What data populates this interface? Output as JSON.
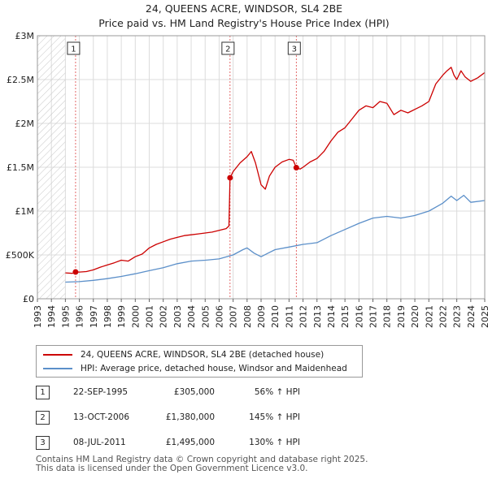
{
  "title": "24, QUEENS ACRE, WINDSOR, SL4 2BE",
  "subtitle": "Price paid vs. HM Land Registry's House Price Index (HPI)",
  "colors": {
    "property": "#cc0000",
    "hpi": "#5b8fc9",
    "grid": "#dcdcdc",
    "marker": "#dd4444"
  },
  "chart_data": {
    "type": "line",
    "title": "24, QUEENS ACRE, WINDSOR, SL4 2BE",
    "subtitle": "Price paid vs. HM Land Registry's House Price Index (HPI)",
    "xlabel": "",
    "ylabel": "",
    "xlim": [
      1993,
      2025
    ],
    "ylim": [
      0,
      3000000
    ],
    "x_ticks": [
      "1993",
      "1994",
      "1995",
      "1996",
      "1997",
      "1998",
      "1999",
      "2000",
      "2001",
      "2002",
      "2003",
      "2004",
      "2005",
      "2006",
      "2007",
      "2008",
      "2009",
      "2010",
      "2011",
      "2012",
      "2013",
      "2014",
      "2015",
      "2016",
      "2017",
      "2018",
      "2019",
      "2020",
      "2021",
      "2022",
      "2023",
      "2024",
      "2025"
    ],
    "y_ticks": [
      {
        "value": 0,
        "label": "£0"
      },
      {
        "value": 500000,
        "label": "£500K"
      },
      {
        "value": 1000000,
        "label": "£1M"
      },
      {
        "value": 1500000,
        "label": "£1.5M"
      },
      {
        "value": 2000000,
        "label": "£2M"
      },
      {
        "value": 2500000,
        "label": "£2.5M"
      },
      {
        "value": 3000000,
        "label": "£3M"
      }
    ],
    "grid": true,
    "hatched_range": [
      1993,
      1995
    ],
    "series": [
      {
        "name": "24, QUEENS ACRE, WINDSOR, SL4 2BE (detached house)",
        "color": "#cc0000",
        "x": [
          1995.0,
          1995.5,
          1995.73,
          1996.0,
          1996.5,
          1997.0,
          1997.5,
          1998.0,
          1998.5,
          1999.0,
          1999.5,
          2000.0,
          2000.5,
          2001.0,
          2001.5,
          2002.0,
          2002.5,
          2003.0,
          2003.5,
          2004.0,
          2004.5,
          2005.0,
          2005.5,
          2006.0,
          2006.5,
          2006.7,
          2006.78,
          2007.0,
          2007.5,
          2008.0,
          2008.3,
          2008.6,
          2009.0,
          2009.3,
          2009.6,
          2010.0,
          2010.5,
          2011.0,
          2011.3,
          2011.52,
          2011.8,
          2012.0,
          2012.5,
          2013.0,
          2013.5,
          2014.0,
          2014.5,
          2015.0,
          2015.5,
          2016.0,
          2016.5,
          2017.0,
          2017.5,
          2018.0,
          2018.5,
          2019.0,
          2019.5,
          2020.0,
          2020.5,
          2021.0,
          2021.5,
          2022.0,
          2022.3,
          2022.6,
          2022.8,
          2023.0,
          2023.3,
          2023.6,
          2024.0,
          2024.5,
          2025.0
        ],
        "y": [
          295000,
          290000,
          305000,
          305000,
          310000,
          330000,
          360000,
          385000,
          410000,
          440000,
          430000,
          480000,
          510000,
          580000,
          620000,
          650000,
          680000,
          700000,
          720000,
          730000,
          740000,
          750000,
          760000,
          780000,
          800000,
          830000,
          1380000,
          1450000,
          1550000,
          1620000,
          1680000,
          1550000,
          1300000,
          1250000,
          1400000,
          1500000,
          1560000,
          1590000,
          1580000,
          1495000,
          1480000,
          1500000,
          1560000,
          1600000,
          1680000,
          1800000,
          1900000,
          1950000,
          2050000,
          2150000,
          2200000,
          2180000,
          2250000,
          2230000,
          2100000,
          2150000,
          2120000,
          2160000,
          2200000,
          2250000,
          2450000,
          2550000,
          2600000,
          2640000,
          2550000,
          2500000,
          2600000,
          2530000,
          2480000,
          2520000,
          2580000
        ]
      },
      {
        "name": "HPI: Average price, detached house, Windsor and Maidenhead",
        "color": "#5b8fc9",
        "x": [
          1995.0,
          1996.0,
          1997.0,
          1998.0,
          1999.0,
          2000.0,
          2001.0,
          2002.0,
          2003.0,
          2004.0,
          2005.0,
          2006.0,
          2007.0,
          2007.7,
          2008.0,
          2008.5,
          2009.0,
          2009.5,
          2010.0,
          2011.0,
          2012.0,
          2013.0,
          2014.0,
          2015.0,
          2016.0,
          2017.0,
          2018.0,
          2019.0,
          2020.0,
          2021.0,
          2022.0,
          2022.6,
          2023.0,
          2023.5,
          2024.0,
          2025.0
        ],
        "y": [
          190000,
          195000,
          210000,
          230000,
          255000,
          285000,
          320000,
          355000,
          400000,
          430000,
          440000,
          455000,
          500000,
          560000,
          580000,
          520000,
          480000,
          520000,
          560000,
          590000,
          620000,
          640000,
          720000,
          790000,
          860000,
          920000,
          940000,
          920000,
          950000,
          1000000,
          1090000,
          1170000,
          1120000,
          1180000,
          1100000,
          1120000
        ]
      }
    ],
    "sales": [
      {
        "label": "1",
        "date": "22-SEP-1995",
        "x": 1995.73,
        "price": 305000,
        "price_text": "£305,000",
        "hpi_text": "56% ↑ HPI"
      },
      {
        "label": "2",
        "date": "13-OCT-2006",
        "x": 2006.78,
        "price": 1380000,
        "price_text": "£1,380,000",
        "hpi_text": "145% ↑ HPI"
      },
      {
        "label": "3",
        "date": "08-JUL-2011",
        "x": 2011.52,
        "price": 1495000,
        "price_text": "£1,495,000",
        "hpi_text": "130% ↑ HPI"
      }
    ]
  },
  "legend": {
    "property_label": "24, QUEENS ACRE, WINDSOR, SL4 2BE (detached house)",
    "hpi_label": "HPI: Average price, detached house, Windsor and Maidenhead"
  },
  "footer": {
    "line1": "Contains HM Land Registry data © Crown copyright and database right 2025.",
    "line2": "This data is licensed under the Open Government Licence v3.0."
  }
}
